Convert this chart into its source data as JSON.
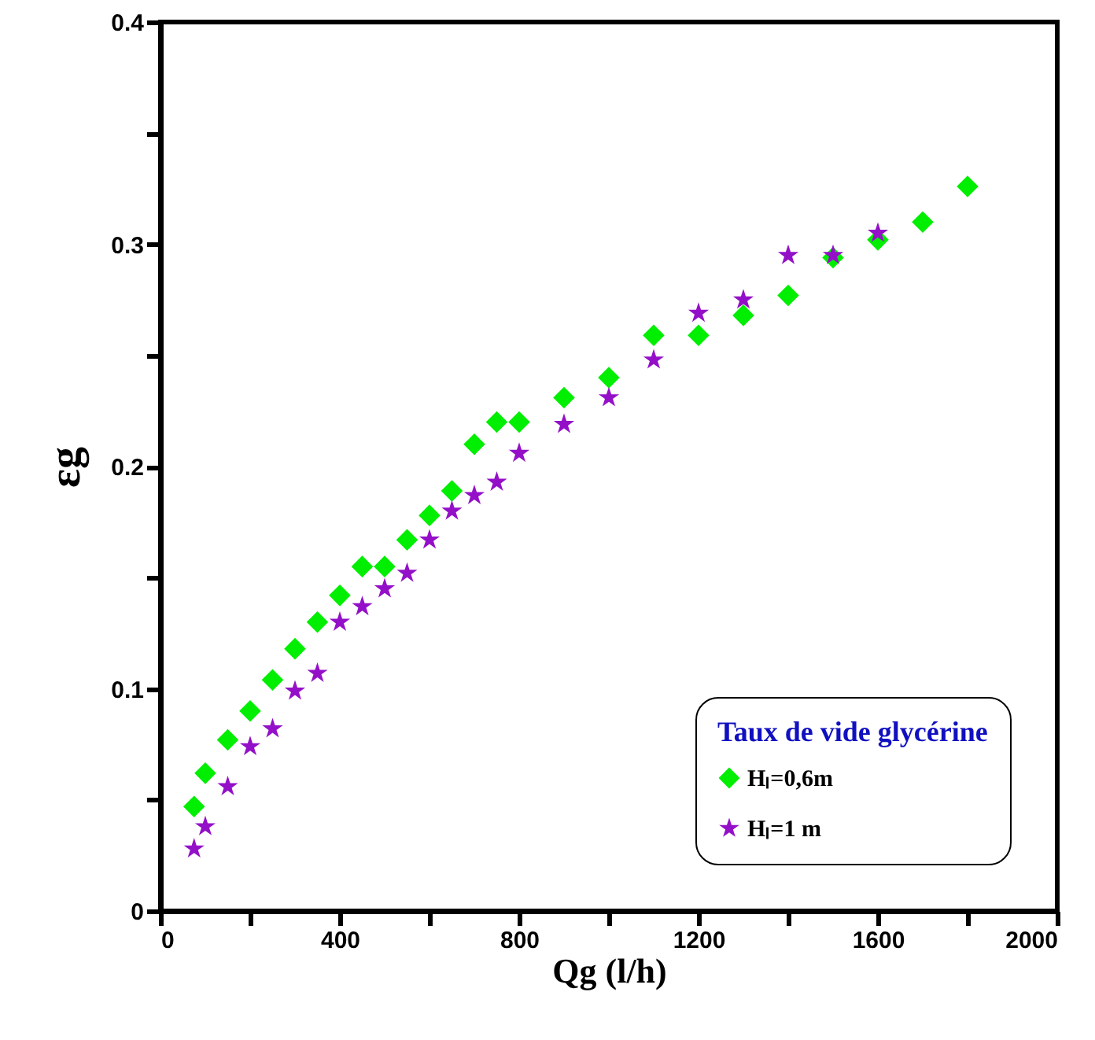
{
  "chart_data": {
    "type": "scatter",
    "xlabel": "Qg (l/h)",
    "ylabel": "εg",
    "legend_title": "Taux de vide glycérine",
    "legend": "bottom right",
    "grid": false,
    "xlim": [
      0,
      2000
    ],
    "xticks": [
      0,
      {
        "value": 200,
        "label": null
      },
      400,
      {
        "value": 600,
        "label": null
      },
      800,
      {
        "value": 1000,
        "label": null
      },
      1200,
      {
        "value": 1400,
        "label": null
      },
      1600,
      {
        "value": 1800,
        "label": null
      },
      2000
    ],
    "ylim": [
      0,
      0.4
    ],
    "yticks": [
      0,
      {
        "value": 0.05,
        "label": null
      },
      0.1,
      {
        "value": 0.15,
        "label": null
      },
      0.2,
      {
        "value": 0.25,
        "label": null
      },
      0.3,
      {
        "value": 0.35,
        "label": null
      },
      0.4
    ],
    "series": [
      {
        "name": "Hₗ=0,6m",
        "color": "#00ee00",
        "marker": "diamond",
        "x": [
          75,
          100,
          150,
          200,
          250,
          300,
          350,
          400,
          450,
          500,
          550,
          600,
          650,
          700,
          750,
          800,
          900,
          1000,
          1100,
          1200,
          1300,
          1400,
          1500,
          1600,
          1700,
          1800
        ],
        "values": [
          0.047,
          0.062,
          0.077,
          0.09,
          0.104,
          0.118,
          0.13,
          0.142,
          0.155,
          0.155,
          0.167,
          0.178,
          0.189,
          0.21,
          0.22,
          0.22,
          0.231,
          0.24,
          0.259,
          0.259,
          0.268,
          0.277,
          0.294,
          0.302,
          0.31,
          0.326
        ]
      },
      {
        "name": "Hₗ=1 m",
        "color": "#9410c8",
        "marker": "star",
        "x": [
          75,
          100,
          150,
          200,
          250,
          300,
          350,
          400,
          450,
          500,
          550,
          600,
          650,
          700,
          750,
          800,
          900,
          1000,
          1100,
          1200,
          1300,
          1400,
          1500,
          1600
        ],
        "values": [
          0.028,
          0.038,
          0.056,
          0.074,
          0.082,
          0.099,
          0.107,
          0.13,
          0.137,
          0.145,
          0.152,
          0.167,
          0.18,
          0.187,
          0.193,
          0.206,
          0.219,
          0.231,
          0.248,
          0.269,
          0.275,
          0.295,
          0.295,
          0.305
        ]
      }
    ]
  }
}
